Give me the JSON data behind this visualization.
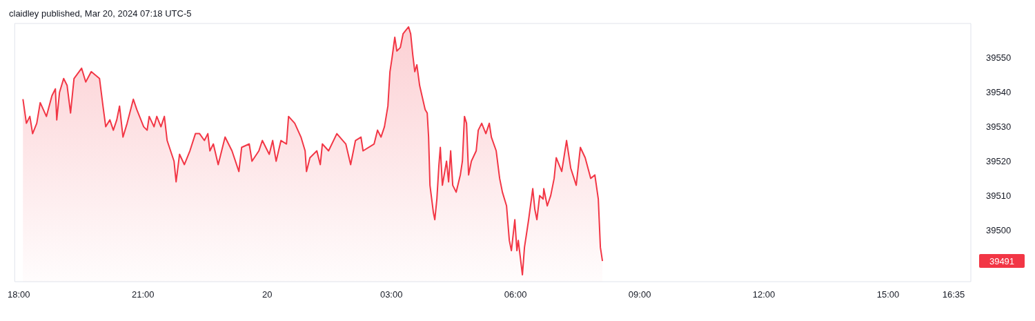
{
  "chart_data": {
    "type": "area",
    "title": "claidley published, Mar 20, 2024 07:18 UTC-5",
    "color": "#f23645",
    "x": [
      "2024-03-19T18:06",
      "2024-03-19T18:11",
      "2024-03-19T18:16",
      "2024-03-19T18:20",
      "2024-03-19T18:26",
      "2024-03-19T18:31",
      "2024-03-19T18:40",
      "2024-03-19T18:48",
      "2024-03-19T18:53",
      "2024-03-19T18:55",
      "2024-03-19T18:59",
      "2024-03-19T19:05",
      "2024-03-19T19:10",
      "2024-03-19T19:15",
      "2024-03-19T19:20",
      "2024-03-19T19:31",
      "2024-03-19T19:37",
      "2024-03-19T19:45",
      "2024-03-19T19:57",
      "2024-03-19T20:02",
      "2024-03-19T20:06",
      "2024-03-19T20:12",
      "2024-03-19T20:17",
      "2024-03-19T20:22",
      "2024-03-19T20:26",
      "2024-03-19T20:31",
      "2024-03-19T20:37",
      "2024-03-19T20:46",
      "2024-03-19T20:51",
      "2024-03-19T21:01",
      "2024-03-19T21:06",
      "2024-03-19T21:09",
      "2024-03-19T21:16",
      "2024-03-19T21:20",
      "2024-03-19T21:26",
      "2024-03-19T21:31",
      "2024-03-19T21:35",
      "2024-03-19T21:45",
      "2024-03-19T21:48",
      "2024-03-19T21:53",
      "2024-03-19T22:00",
      "2024-03-19T22:08",
      "2024-03-19T22:16",
      "2024-03-19T22:22",
      "2024-03-19T22:29",
      "2024-03-19T22:34",
      "2024-03-19T22:37",
      "2024-03-19T22:42",
      "2024-03-19T22:49",
      "2024-03-19T22:59",
      "2024-03-19T23:09",
      "2024-03-19T23:19",
      "2024-03-19T23:23",
      "2024-03-19T23:34",
      "2024-03-19T23:38",
      "2024-03-19T23:48",
      "2024-03-19T23:53",
      "2024-03-20T00:03",
      "2024-03-20T00:08",
      "2024-03-20T00:13",
      "2024-03-20T00:20",
      "2024-03-20T00:28",
      "2024-03-20T00:31",
      "2024-03-20T00:40",
      "2024-03-20T00:49",
      "2024-03-20T00:55",
      "2024-03-20T00:57",
      "2024-03-20T01:02",
      "2024-03-20T01:12",
      "2024-03-20T01:17",
      "2024-03-20T01:20",
      "2024-03-20T01:29",
      "2024-03-20T01:41",
      "2024-03-20T01:54",
      "2024-03-20T02:01",
      "2024-03-20T02:08",
      "2024-03-20T02:16",
      "2024-03-20T02:19",
      "2024-03-20T02:35",
      "2024-03-20T02:40",
      "2024-03-20T02:45",
      "2024-03-20T02:50",
      "2024-03-20T02:55",
      "2024-03-20T02:58",
      "2024-03-20T03:01",
      "2024-03-20T03:05",
      "2024-03-20T03:08",
      "2024-03-20T03:13",
      "2024-03-20T03:17",
      "2024-03-20T03:25",
      "2024-03-20T03:28",
      "2024-03-20T03:31",
      "2024-03-20T03:34",
      "2024-03-20T03:37",
      "2024-03-20T03:41",
      "2024-03-20T03:49",
      "2024-03-20T03:52",
      "2024-03-20T03:54",
      "2024-03-20T03:56",
      "2024-03-20T04:01",
      "2024-03-20T04:03",
      "2024-03-20T04:06",
      "2024-03-20T04:09",
      "2024-03-20T04:11",
      "2024-03-20T04:14",
      "2024-03-20T04:20",
      "2024-03-20T04:23",
      "2024-03-20T04:26",
      "2024-03-20T04:29",
      "2024-03-20T04:34",
      "2024-03-20T04:40",
      "2024-03-20T04:43",
      "2024-03-20T04:46",
      "2024-03-20T04:49",
      "2024-03-20T04:52",
      "2024-03-20T04:56",
      "2024-03-20T05:03",
      "2024-03-20T05:06",
      "2024-03-20T05:11",
      "2024-03-20T05:17",
      "2024-03-20T05:22",
      "2024-03-20T05:25",
      "2024-03-20T05:32",
      "2024-03-20T05:37",
      "2024-03-20T05:41",
      "2024-03-20T05:47",
      "2024-03-20T05:51",
      "2024-03-20T05:54",
      "2024-03-20T05:59",
      "2024-03-20T06:02",
      "2024-03-20T06:04",
      "2024-03-20T06:10",
      "2024-03-20T06:13",
      "2024-03-20T06:19",
      "2024-03-20T06:25",
      "2024-03-20T06:28",
      "2024-03-20T06:31",
      "2024-03-20T06:35",
      "2024-03-20T06:40",
      "2024-03-20T06:41",
      "2024-03-20T06:46",
      "2024-03-20T06:51",
      "2024-03-20T06:56",
      "2024-03-20T06:59",
      "2024-03-20T07:07",
      "2024-03-20T07:14",
      "2024-03-20T07:20",
      "2024-03-20T07:28",
      "2024-03-20T07:34",
      "2024-03-20T07:41",
      "2024-03-20T07:49",
      "2024-03-20T07:55",
      "2024-03-20T08:00",
      "2024-03-20T08:03",
      "2024-03-20T08:06"
    ],
    "values": [
      39538,
      39531,
      39533,
      39528,
      39531,
      39537,
      39533,
      39539,
      39541,
      39532,
      39540,
      39544,
      39542,
      39534,
      39544,
      39547,
      39543,
      39546,
      39544,
      39536,
      39530,
      39532,
      39529,
      39532,
      39536,
      39527,
      39531,
      39538,
      39535,
      39530,
      39529,
      39533,
      39530,
      39533,
      39530,
      39533,
      39526,
      39520,
      39514,
      39522,
      39519,
      39523,
      39528,
      39528,
      39526,
      39528,
      39523,
      39525,
      39519,
      39527,
      39523,
      39517,
      39524,
      39525,
      39520,
      39523,
      39526,
      39522,
      39526,
      39520,
      39526,
      39525,
      39533,
      39531,
      39527,
      39523,
      39517,
      39521,
      39523,
      39519,
      39525,
      39523,
      39528,
      39525,
      39519,
      39526,
      39527,
      39523,
      39525,
      39529,
      39527,
      39530,
      39536,
      39546,
      39550,
      39556,
      39552,
      39553,
      39557,
      39559,
      39557,
      39551,
      39546,
      39548,
      39542,
      39535,
      39534,
      39527,
      39513,
      39505,
      39503,
      39509,
      39519,
      39524,
      39513,
      39520,
      39514,
      39523,
      39513,
      39511,
      39516,
      39520,
      39533,
      39531,
      39516,
      39520,
      39523,
      39529,
      39531,
      39528,
      39531,
      39527,
      39523,
      39515,
      39511,
      39507,
      39497,
      39494,
      39503,
      39494,
      39497,
      39487,
      39495,
      39503,
      39512,
      39506,
      39503,
      39510,
      39509,
      39512,
      39507,
      39510,
      39515,
      39521,
      39517,
      39526,
      39518,
      39513,
      39524,
      39521,
      39515,
      39516,
      39509,
      39495,
      39491
    ],
    "xlim": [
      "2024-03-19T17:54",
      "2024-03-20T17:00"
    ],
    "xticks": [
      {
        "value": "2024-03-19T18:00",
        "label": "18:00"
      },
      {
        "value": "2024-03-19T21:00",
        "label": "21:00"
      },
      {
        "value": "2024-03-20T00:00",
        "label": "20"
      },
      {
        "value": "2024-03-20T03:00",
        "label": "03:00"
      },
      {
        "value": "2024-03-20T06:00",
        "label": "06:00"
      },
      {
        "value": "2024-03-20T09:00",
        "label": "09:00"
      },
      {
        "value": "2024-03-20T12:00",
        "label": "12:00"
      },
      {
        "value": "2024-03-20T15:00",
        "label": "15:00"
      },
      {
        "value": "2024-03-20T16:35",
        "label": "16:35"
      }
    ],
    "ylim": [
      39485,
      39560
    ],
    "yticks": [
      39500,
      39510,
      39520,
      39530,
      39540,
      39550
    ],
    "annotations": [
      "39491"
    ]
  }
}
